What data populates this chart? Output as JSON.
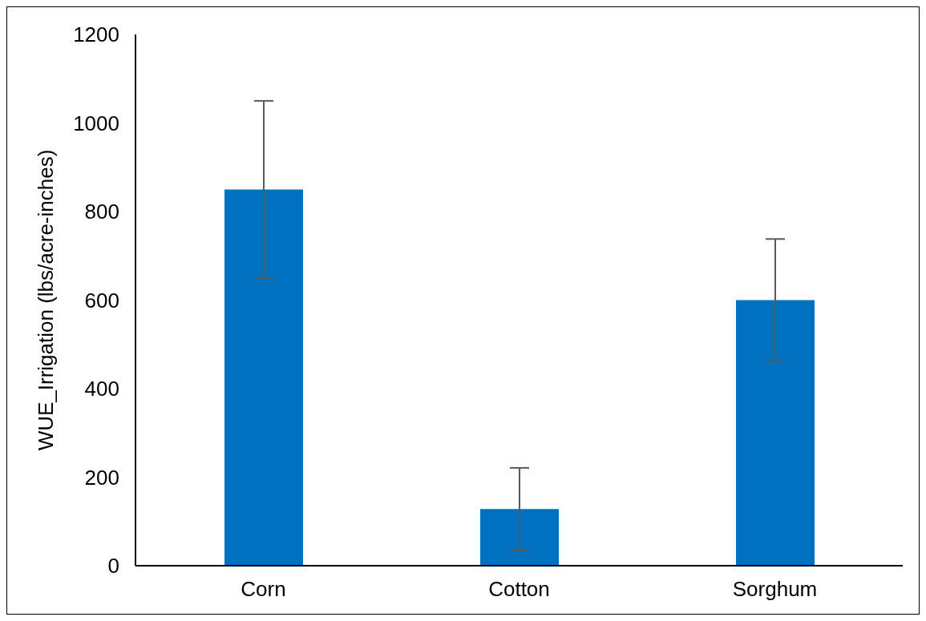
{
  "chart_data": {
    "type": "bar",
    "ylabel": "WUE_Irrigation (lbs/acre-inches)",
    "categories": [
      "Corn",
      "Cotton",
      "Sorghum"
    ],
    "values": [
      850,
      128,
      600
    ],
    "errors": [
      200,
      93,
      138
    ],
    "color": "#0070c0",
    "ylim": [
      0,
      1200
    ],
    "yticks": [
      0,
      200,
      400,
      600,
      800,
      1000,
      1200
    ],
    "grid": false,
    "legend": false
  }
}
